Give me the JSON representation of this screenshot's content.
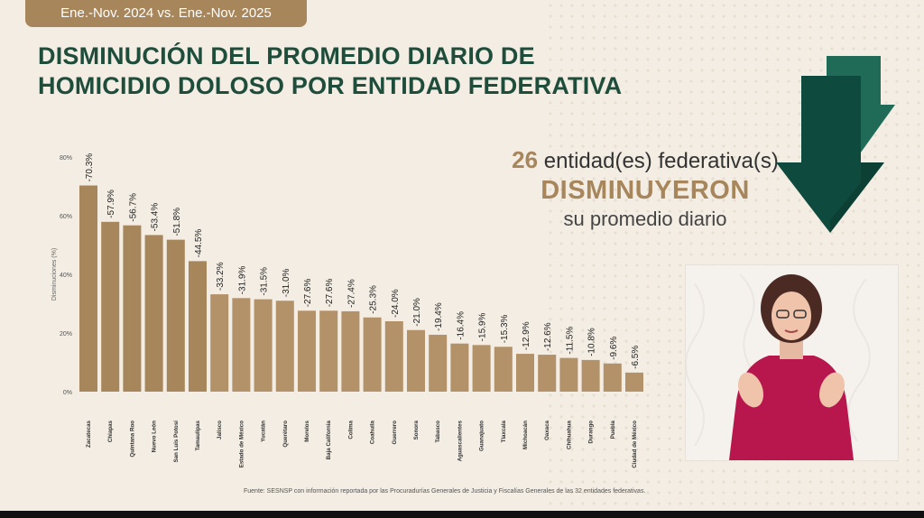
{
  "header": {
    "period_badge": "Ene.-Nov. 2024 vs. Ene.-Nov. 2025",
    "title_line1": "DISMINUCIÓN DEL PROMEDIO DIARIO DE",
    "title_line2": "HOMICIDIO DOLOSO POR ENTIDAD FEDERATIVA"
  },
  "summary": {
    "count": "26",
    "count_suffix": " entidad(es) federativa(s)",
    "verb": "DISMINUYERON",
    "tail": "su promedio diario"
  },
  "source": "Fuente: SESNSP con información reportada por las Procuradurías Generales de Justicia y Fiscalías Generales de las 32 entidades federativas.",
  "colors": {
    "bar": "#a7865c",
    "bar_light": "#c9ab80",
    "title_green": "#1f4d3c",
    "arrow_dark": "#0f4a3e",
    "arrow_light": "#1f6b58"
  },
  "chart_data": {
    "type": "bar",
    "ylabel": "Disminuciones (%)",
    "ylim": [
      0,
      80
    ],
    "yticks": [
      "0%",
      "20%",
      "40%",
      "60%",
      "80%"
    ],
    "grid": false,
    "categories": [
      "Zacatecas",
      "Chiapas",
      "Quintana Roo",
      "Nuevo León",
      "San Luis Potosí",
      "Tamaulipas",
      "Jalisco",
      "Estado de México",
      "Yucatán",
      "Querétaro",
      "Morelos",
      "Baja California",
      "Colima",
      "Coahuila",
      "Guerrero",
      "Sonora",
      "Tabasco",
      "Aguascalientes",
      "Guanajuato",
      "Tlaxcala",
      "Michoacán",
      "Oaxaca",
      "Chihuahua",
      "Durango",
      "Puebla",
      "Ciudad de México"
    ],
    "values": [
      70.3,
      57.9,
      56.7,
      53.4,
      51.8,
      44.5,
      33.2,
      31.9,
      31.5,
      31.0,
      27.6,
      27.6,
      27.4,
      25.3,
      24.0,
      21.0,
      19.4,
      16.4,
      15.9,
      15.3,
      12.9,
      12.6,
      11.5,
      10.8,
      9.6,
      6.5
    ],
    "labels": [
      "-70.3%",
      "-57.9%",
      "-56.7%",
      "-53.4%",
      "-51.8%",
      "-44.5%",
      "-33.2%",
      "-31.9%",
      "-31.5%",
      "-31.0%",
      "-27.6%",
      "-27.6%",
      "-27.4%",
      "-25.3%",
      "-24.0%",
      "-21.0%",
      "-19.4%",
      "-16.4%",
      "-15.9%",
      "-15.3%",
      "-12.9%",
      "-12.6%",
      "-11.5%",
      "-10.8%",
      "-9.6%",
      "-6.5%"
    ]
  }
}
